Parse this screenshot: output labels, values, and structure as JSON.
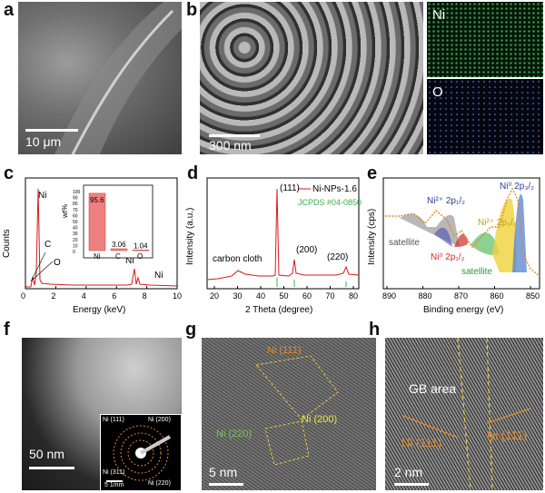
{
  "panels": {
    "a": {
      "letter": "a",
      "scale": "10 μm"
    },
    "b": {
      "letter": "b",
      "scale": "300 nm",
      "map1": "Ni",
      "map2": "O"
    },
    "c": {
      "letter": "c",
      "xlabel": "Energy (keV)",
      "ylabel": "Counts",
      "xticks": [
        "0",
        "2",
        "4",
        "6",
        "8",
        "10"
      ],
      "peak_labels": [
        "Ni",
        "C",
        "O",
        "Ni",
        "Ni"
      ],
      "inset": {
        "ylabel": "wt%",
        "yticks": [
          "0",
          "10",
          "20",
          "30",
          "40",
          "50",
          "60",
          "70",
          "80",
          "90",
          "100"
        ],
        "categories": [
          "Ni",
          "C",
          "O"
        ],
        "values": [
          95.6,
          3.06,
          1.04
        ],
        "value_labels": [
          "95.6",
          "3.06",
          "1.04"
        ]
      }
    },
    "d": {
      "letter": "d",
      "xlabel": "2 Theta (degree)",
      "ylabel": "Intensity (a.u.)",
      "xticks": [
        "20",
        "30",
        "40",
        "50",
        "60",
        "70",
        "80"
      ],
      "legend": "Ni-NPs-1.6",
      "jcpds": "JCPDS #04-0850",
      "labels": [
        "(111)",
        "(200)",
        "(220)",
        "carbon cloth"
      ]
    },
    "e": {
      "letter": "e",
      "xlabel": "Binding energy (eV)",
      "ylabel": "Intensity (cps)",
      "xticks": [
        "890",
        "880",
        "870",
        "860",
        "850"
      ],
      "labels": {
        "ni2_12": "Ni²⁺ 2p₁/₂",
        "ni2_32": "Ni²⁺ 2p₃/₂",
        "ni0_32": "Ni⁰ 2p₃/₂",
        "ni0_12": "Ni⁰ 2p₁/₂",
        "sat1": "satellite",
        "sat2": "satellite"
      }
    },
    "f": {
      "letter": "f",
      "scale": "50 nm",
      "saed_scale": "5 1/nm",
      "rings": [
        "Ni (111)",
        "Ni (200)",
        "Ni (311)",
        "Ni (220)"
      ]
    },
    "g": {
      "letter": "g",
      "scale": "5 nm",
      "labels": [
        "Ni (111)",
        "Ni (200)",
        "Ni (220)"
      ]
    },
    "h": {
      "letter": "h",
      "scale": "2 nm",
      "gb": "GB area",
      "labels": [
        "Ni (111)",
        "Ni (111)"
      ]
    }
  },
  "chart_data": [
    {
      "type": "bar",
      "title": "",
      "categories": [
        "Ni",
        "C",
        "O"
      ],
      "values": [
        95.6,
        3.06,
        1.04
      ],
      "ylabel": "wt%",
      "ylim": [
        0,
        100
      ]
    }
  ]
}
